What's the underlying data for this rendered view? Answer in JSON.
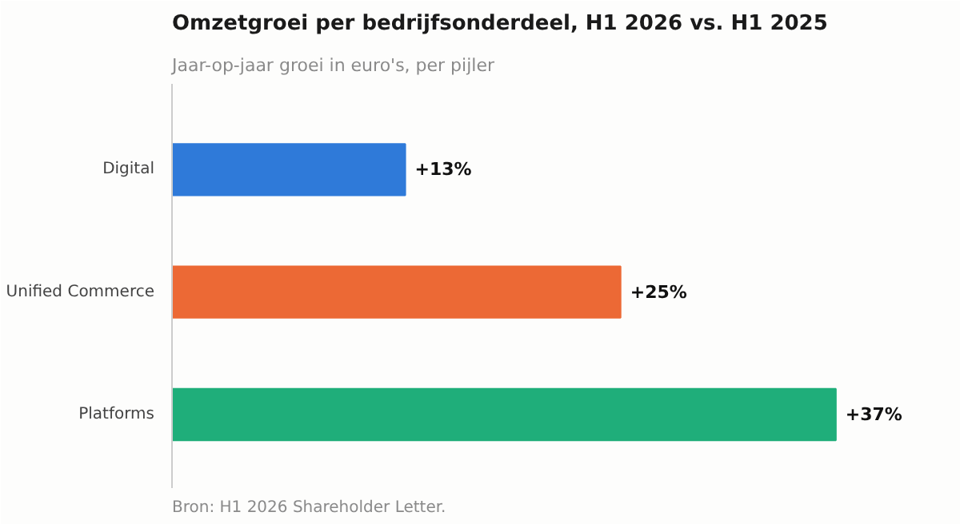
{
  "chart_data": {
    "type": "bar",
    "orientation": "horizontal",
    "title": "Omzetgroei per bedrijfsonderdeel, H1 2026 vs. H1 2025",
    "subtitle": "Jaar-op-jaar groei in euro's, per pijler",
    "categories": [
      "Digital",
      "Unified Commerce",
      "Platforms"
    ],
    "values": [
      13,
      25,
      37
    ],
    "colors": [
      "#2f7ad9",
      "#ec6935",
      "#1fae7a"
    ],
    "value_labels": [
      "+13%",
      "+25%",
      "+37%"
    ],
    "annotations": [
      "Bron: H1 2026 Shareholder Letter."
    ]
  }
}
